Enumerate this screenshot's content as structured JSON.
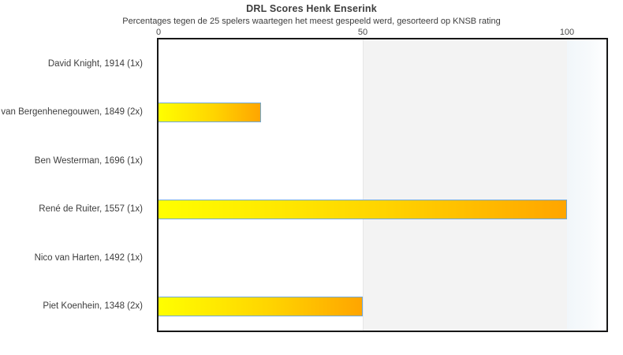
{
  "chart_data": {
    "type": "bar",
    "orientation": "horizontal",
    "title": "DRL Scores Henk Enserink",
    "subtitle": "Percentages tegen de 25 spelers waartegen het meest gespeeld werd, gesorteerd op KNSB rating",
    "categories": [
      "David Knight, 1914 (1x)",
      "van Bergenhenegouwen, 1849 (2x)",
      "Ben Westerman, 1696 (1x)",
      "René de Ruiter, 1557 (1x)",
      "Nico van Harten, 1492 (1x)",
      "Piet Koenhein, 1348 (2x)"
    ],
    "values": [
      0,
      25,
      0,
      100,
      0,
      50
    ],
    "xlabel": "",
    "ylabel": "",
    "xlim": [
      0,
      110
    ],
    "x_ticks": [
      "0",
      "50",
      "100"
    ],
    "grid": "off",
    "legend": "none",
    "shaded_band": {
      "from": 50,
      "to": 100,
      "color": "#f3f3f3"
    },
    "colors": {
      "bar_gradient_start": "#ffff00",
      "bar_gradient_end": "#ffa500",
      "bar_border": "#6fa8d8",
      "plot_border": "#171717",
      "text": "#3d3d3d"
    }
  }
}
